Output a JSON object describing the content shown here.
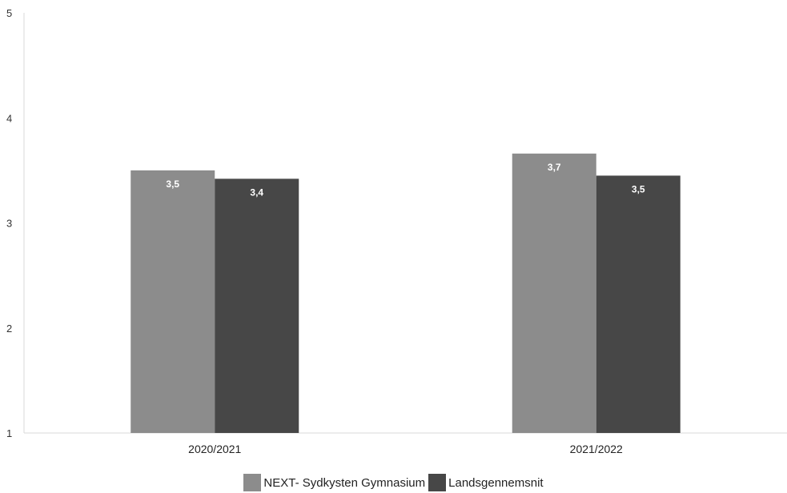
{
  "chart_data": {
    "type": "bar",
    "title": "",
    "xlabel": "",
    "ylabel": "",
    "categories": [
      "2020/2021",
      "2021/2022"
    ],
    "ylim": [
      1,
      5
    ],
    "yticks": [
      "1",
      "2",
      "3",
      "4",
      "5"
    ],
    "series": [
      {
        "name": "NEXT- Sydkysten Gymnasium",
        "values": [
          3.5,
          3.66
        ],
        "labels": [
          "3,5",
          "3,7"
        ],
        "color": "#8c8c8c"
      },
      {
        "name": "Landsgennemsnit",
        "values": [
          3.42,
          3.45
        ],
        "labels": [
          "3,4",
          "3,5"
        ],
        "color": "#474747"
      }
    ],
    "legend_position": "bottom",
    "grid": false
  }
}
